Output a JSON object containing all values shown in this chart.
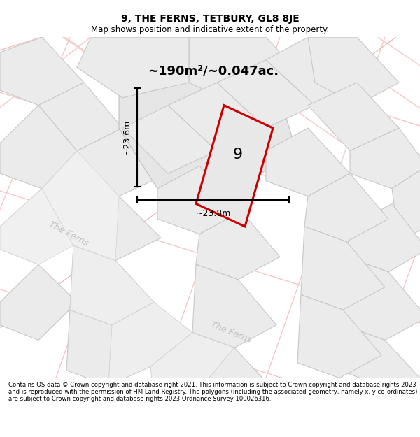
{
  "title": "9, THE FERNS, TETBURY, GL8 8JE",
  "subtitle": "Map shows position and indicative extent of the property.",
  "area_label": "~190m²/~0.047ac.",
  "property_number": "9",
  "dim_horizontal": "~23.8m",
  "dim_vertical": "~23.6m",
  "footer": "Contains OS data © Crown copyright and database right 2021. This information is subject to Crown copyright and database rights 2023 and is reproduced with the permission of HM Land Registry. The polygons (including the associated geometry, namely x, y co-ordinates) are subject to Crown copyright and database rights 2023 Ordnance Survey 100026316.",
  "bg_color": "#ffffff",
  "map_bg": "#ffffff",
  "plot_fill": "#ebebeb",
  "plot_edge": "#c8c8c8",
  "road_color": "#f5c8c8",
  "road_color2": "#e8a8a8",
  "property_fill": "#e8e8e8",
  "property_edge": "#cc0000",
  "street_color": "#c0c0c0",
  "dim_color": "#000000",
  "text_color": "#000000",
  "title_fontsize": 10,
  "subtitle_fontsize": 8.5,
  "area_fontsize": 13,
  "number_fontsize": 16,
  "dim_fontsize": 9,
  "street_fontsize": 9,
  "footer_fontsize": 6.1
}
